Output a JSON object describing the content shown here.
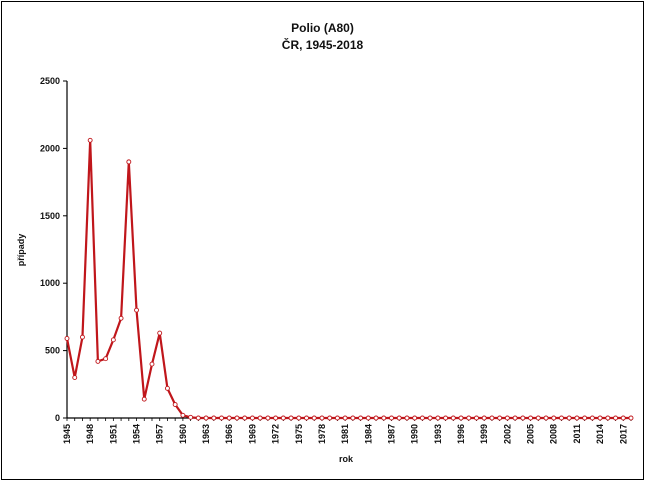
{
  "chart_data": {
    "type": "line",
    "title": "Polio (A80)",
    "subtitle": "ČR, 1945-2018",
    "xlabel": "rok",
    "ylabel": "případy",
    "ylim": [
      0,
      2500
    ],
    "yticks": [
      0,
      500,
      1000,
      1500,
      2000,
      2500
    ],
    "xlim": [
      1945,
      2018
    ],
    "xtick_labels": [
      "1945",
      "1948",
      "1951",
      "1954",
      "1957",
      "1960",
      "1963",
      "1966",
      "1969",
      "1972",
      "1975",
      "1978",
      "1981",
      "1984",
      "1987",
      "1990",
      "1993",
      "1996",
      "1999",
      "2002",
      "2005",
      "2008",
      "2011",
      "2014",
      "2017"
    ],
    "grid": false,
    "legend": "none",
    "color": "#c0161b",
    "series": [
      {
        "x": [
          1945,
          1946,
          1947,
          1948,
          1949,
          1950,
          1951,
          1952,
          1953,
          1954,
          1955,
          1956,
          1957,
          1958,
          1959,
          1960,
          1961,
          1962,
          1963,
          1964,
          1965,
          1966,
          1967,
          1968,
          1969,
          1970,
          1971,
          1972,
          1973,
          1974,
          1975,
          1976,
          1977,
          1978,
          1979,
          1980,
          1981,
          1982,
          1983,
          1984,
          1985,
          1986,
          1987,
          1988,
          1989,
          1990,
          1991,
          1992,
          1993,
          1994,
          1995,
          1996,
          1997,
          1998,
          1999,
          2000,
          2001,
          2002,
          2003,
          2004,
          2005,
          2006,
          2007,
          2008,
          2009,
          2010,
          2011,
          2012,
          2013,
          2014,
          2015,
          2016,
          2017,
          2018
        ],
        "values": [
          590,
          300,
          600,
          2060,
          420,
          440,
          580,
          740,
          1900,
          800,
          140,
          400,
          630,
          220,
          100,
          20,
          5,
          0,
          0,
          0,
          0,
          0,
          0,
          0,
          0,
          0,
          0,
          0,
          0,
          0,
          0,
          0,
          0,
          0,
          0,
          0,
          0,
          0,
          0,
          0,
          0,
          0,
          0,
          0,
          0,
          0,
          0,
          0,
          0,
          0,
          0,
          0,
          0,
          0,
          0,
          0,
          0,
          0,
          0,
          0,
          0,
          0,
          0,
          0,
          0,
          0,
          0,
          0,
          0,
          0,
          0,
          0,
          0,
          0
        ]
      }
    ]
  }
}
